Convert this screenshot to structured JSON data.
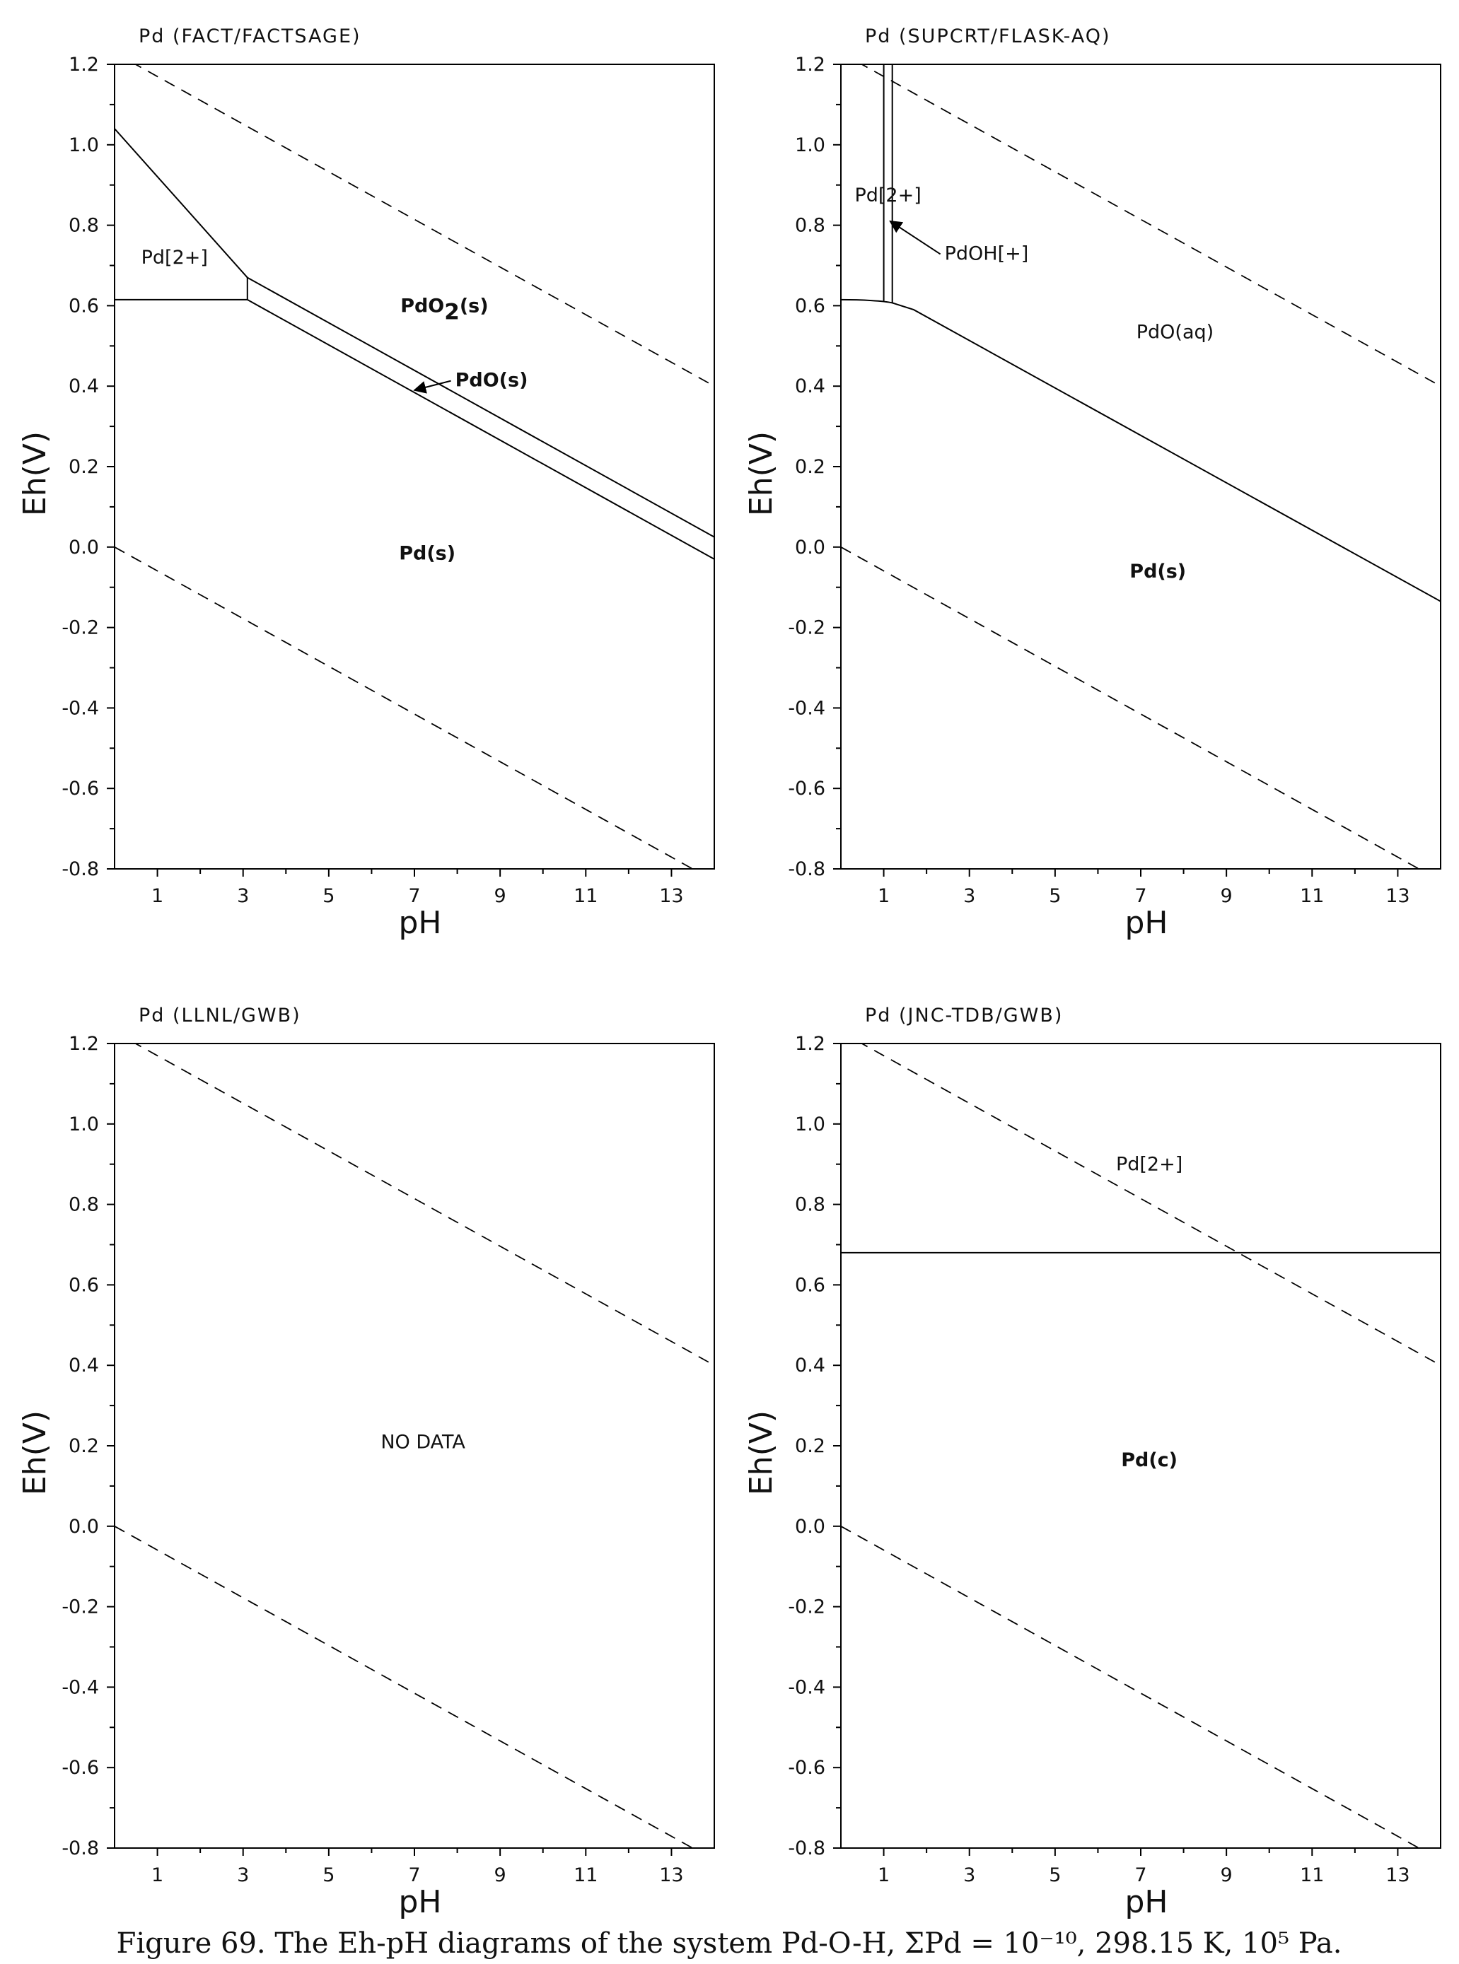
{
  "figure": {
    "caption": "Figure 69. The Eh-pH diagrams of the system Pd-O-H, ΣPd = 10⁻¹⁰, 298.15 K, 10⁵ Pa."
  },
  "chart_data": [
    {
      "type": "line",
      "title": "Pd (FACT/FACTSAGE)",
      "xlabel": "pH",
      "ylabel": "Eh(V)",
      "xlim": [
        0,
        14
      ],
      "ylim": [
        -0.8,
        1.2
      ],
      "xticks": [
        1,
        3,
        5,
        7,
        9,
        11,
        13
      ],
      "yticks": [
        -0.8,
        -0.6,
        -0.4,
        -0.2,
        0.0,
        0.2,
        0.4,
        0.6,
        0.8,
        1.0,
        1.2
      ],
      "grid": false,
      "water_lines": [
        {
          "name": "O2/H2O",
          "points": [
            [
              0,
              1.229
            ],
            [
              14,
              0.4
            ]
          ]
        },
        {
          "name": "H2O/H2",
          "points": [
            [
              0,
              0.0
            ],
            [
              14,
              -0.83
            ]
          ]
        }
      ],
      "boundaries": [
        {
          "points": [
            [
              0,
              1.04
            ],
            [
              3.1,
              0.67
            ]
          ]
        },
        {
          "points": [
            [
              0,
              0.615
            ],
            [
              3.1,
              0.615
            ]
          ]
        },
        {
          "points": [
            [
              3.1,
              0.67
            ],
            [
              3.1,
              0.615
            ]
          ]
        },
        {
          "points": [
            [
              3.1,
              0.67
            ],
            [
              14,
              0.025
            ]
          ]
        },
        {
          "points": [
            [
              3.1,
              0.615
            ],
            [
              14,
              -0.03
            ]
          ]
        }
      ],
      "labels": [
        {
          "text": "Pd[2+]",
          "x": 1.4,
          "y": 0.72,
          "bold": false
        },
        {
          "text": "PdO",
          "sub": "2",
          "tail": "(s)",
          "x": 7.7,
          "y": 0.6,
          "bold": true
        },
        {
          "text": "PdO(s)",
          "x": 8.8,
          "y": 0.415,
          "bold": true,
          "arrow_to": [
            7.0,
            0.39
          ]
        },
        {
          "text": "Pd(s)",
          "x": 7.3,
          "y": -0.015,
          "bold": true
        }
      ]
    },
    {
      "type": "line",
      "title": "Pd (SUPCRT/FLASK-AQ)",
      "xlabel": "pH",
      "ylabel": "Eh(V)",
      "xlim": [
        0,
        14
      ],
      "ylim": [
        -0.8,
        1.2
      ],
      "xticks": [
        1,
        3,
        5,
        7,
        9,
        11,
        13
      ],
      "yticks": [
        -0.8,
        -0.6,
        -0.4,
        -0.2,
        0.0,
        0.2,
        0.4,
        0.6,
        0.8,
        1.0,
        1.2
      ],
      "grid": false,
      "water_lines": [
        {
          "name": "O2/H2O",
          "points": [
            [
              0,
              1.229
            ],
            [
              14,
              0.4
            ]
          ]
        },
        {
          "name": "H2O/H2",
          "points": [
            [
              0,
              0.0
            ],
            [
              14,
              -0.83
            ]
          ]
        }
      ],
      "boundaries": [
        {
          "points": [
            [
              1.0,
              1.2
            ],
            [
              1.0,
              0.612
            ]
          ]
        },
        {
          "points": [
            [
              1.2,
              1.2
            ],
            [
              1.2,
              0.607
            ]
          ]
        },
        {
          "points": [
            [
              0,
              0.615
            ],
            [
              0.5,
              0.615
            ],
            [
              1.0,
              0.612
            ],
            [
              1.2,
              0.607
            ],
            [
              1.7,
              0.59
            ],
            [
              14,
              -0.135
            ]
          ]
        }
      ],
      "labels": [
        {
          "text": "Pd[2+]",
          "x": 1.1,
          "y": 0.875,
          "bold": false
        },
        {
          "text": "PdOH[+]",
          "x": 3.4,
          "y": 0.73,
          "bold": false,
          "arrow_to": [
            1.15,
            0.81
          ]
        },
        {
          "text": "PdO(aq)",
          "x": 7.8,
          "y": 0.535,
          "bold": false
        },
        {
          "text": "Pd(s)",
          "x": 7.4,
          "y": -0.06,
          "bold": true
        }
      ]
    },
    {
      "type": "line",
      "title": "Pd (LLNL/GWB)",
      "xlabel": "pH",
      "ylabel": "Eh(V)",
      "xlim": [
        0,
        14
      ],
      "ylim": [
        -0.8,
        1.2
      ],
      "xticks": [
        1,
        3,
        5,
        7,
        9,
        11,
        13
      ],
      "yticks": [
        -0.8,
        -0.6,
        -0.4,
        -0.2,
        0.0,
        0.2,
        0.4,
        0.6,
        0.8,
        1.0,
        1.2
      ],
      "grid": false,
      "water_lines": [
        {
          "name": "O2/H2O",
          "points": [
            [
              0,
              1.229
            ],
            [
              14,
              0.4
            ]
          ]
        },
        {
          "name": "H2O/H2",
          "points": [
            [
              0,
              0.0
            ],
            [
              14,
              -0.83
            ]
          ]
        }
      ],
      "boundaries": [],
      "labels": [
        {
          "text": "NO DATA",
          "x": 7.2,
          "y": 0.21,
          "bold": false
        }
      ]
    },
    {
      "type": "line",
      "title": "Pd (JNC-TDB/GWB)",
      "xlabel": "pH",
      "ylabel": "Eh(V)",
      "xlim": [
        0,
        14
      ],
      "ylim": [
        -0.8,
        1.2
      ],
      "xticks": [
        1,
        3,
        5,
        7,
        9,
        11,
        13
      ],
      "yticks": [
        -0.8,
        -0.6,
        -0.4,
        -0.2,
        0.0,
        0.2,
        0.4,
        0.6,
        0.8,
        1.0,
        1.2
      ],
      "grid": false,
      "water_lines": [
        {
          "name": "O2/H2O",
          "points": [
            [
              0,
              1.229
            ],
            [
              14,
              0.4
            ]
          ]
        },
        {
          "name": "H2O/H2",
          "points": [
            [
              0,
              0.0
            ],
            [
              14,
              -0.83
            ]
          ]
        }
      ],
      "boundaries": [
        {
          "points": [
            [
              0,
              0.68
            ],
            [
              14,
              0.68
            ]
          ]
        }
      ],
      "labels": [
        {
          "text": "Pd[2+]",
          "x": 7.2,
          "y": 0.9,
          "bold": false
        },
        {
          "text": "Pd(c)",
          "x": 7.2,
          "y": 0.165,
          "bold": true
        }
      ]
    }
  ]
}
